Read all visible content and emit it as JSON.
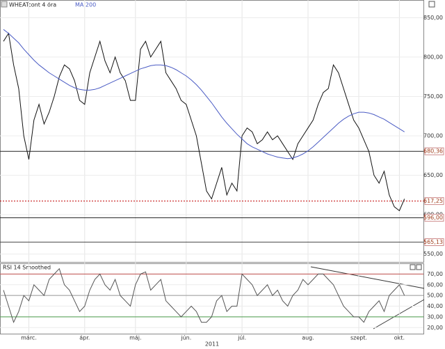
{
  "chart_data": [
    {
      "type": "line",
      "title": "WHEATcont 4 óra",
      "ylim": [
        540,
        860
      ],
      "yticks": [
        {
          "value": 850,
          "label": "850,00"
        },
        {
          "value": 800,
          "label": "800,00"
        },
        {
          "value": 750,
          "label": "750,00"
        },
        {
          "value": 700,
          "label": "700,00"
        },
        {
          "value": 650,
          "label": "650,00"
        },
        {
          "value": 600,
          "label": "600,00"
        },
        {
          "value": 550,
          "label": "550,00"
        }
      ],
      "grid": true,
      "series": [
        {
          "name": "WHEATcont 4 óra",
          "color": "#111111",
          "values": [
            820,
            830,
            790,
            760,
            700,
            670,
            720,
            740,
            715,
            730,
            750,
            775,
            790,
            785,
            770,
            745,
            740,
            780,
            800,
            820,
            795,
            780,
            800,
            780,
            770,
            745,
            745,
            810,
            820,
            800,
            810,
            820,
            780,
            770,
            760,
            745,
            740,
            720,
            700,
            665,
            630,
            620,
            640,
            660,
            625,
            640,
            630,
            700,
            710,
            705,
            690,
            695,
            705,
            695,
            700,
            690,
            680,
            670,
            690,
            700,
            710,
            720,
            740,
            755,
            760,
            790,
            780,
            760,
            740,
            720,
            710,
            695,
            680,
            650,
            640,
            655,
            625,
            610,
            605,
            620
          ]
        },
        {
          "name": "MA 200",
          "color": "#4a5bc4",
          "values": [
            835,
            830,
            824,
            818,
            810,
            803,
            796,
            790,
            785,
            780,
            776,
            772,
            768,
            764,
            761,
            759,
            758,
            758,
            759,
            761,
            764,
            767,
            770,
            773,
            776,
            779,
            782,
            785,
            787,
            789,
            790,
            790,
            789,
            787,
            784,
            780,
            776,
            771,
            765,
            758,
            750,
            742,
            733,
            724,
            716,
            709,
            702,
            696,
            690,
            686,
            683,
            680,
            677,
            675,
            673,
            672,
            671,
            672,
            674,
            677,
            681,
            686,
            692,
            698,
            704,
            710,
            716,
            721,
            725,
            728,
            730,
            730,
            729,
            727,
            724,
            721,
            717,
            713,
            709,
            705
          ]
        }
      ],
      "levels": [
        {
          "value": 680.36,
          "label": "680,36",
          "color": "#222222"
        },
        {
          "value": 617.25,
          "label": "617,25",
          "color": "#c00000",
          "style": "dotted"
        },
        {
          "value": 596,
          "label": "596,00",
          "color": "#222222"
        },
        {
          "value": 565.13,
          "label": "565,13",
          "color": "#444444"
        }
      ]
    },
    {
      "type": "line",
      "title": "RSI 14 Smoothed",
      "ylim": [
        15,
        80
      ],
      "yticks": [
        {
          "value": 70,
          "label": "70,00"
        },
        {
          "value": 60,
          "label": "60,00"
        },
        {
          "value": 50,
          "label": "50,00"
        },
        {
          "value": 40,
          "label": "40,00"
        },
        {
          "value": 30,
          "label": "30,00"
        },
        {
          "value": 20,
          "label": "20,00"
        }
      ],
      "grid": true,
      "categories": [
        null,
        null,
        null,
        null,
        null,
        "márc.",
        null,
        null,
        null,
        null,
        null,
        null,
        null,
        null,
        null,
        null,
        "ápr.",
        null,
        null,
        null,
        null,
        null,
        null,
        null,
        null,
        null,
        "máj.",
        null,
        null,
        null,
        null,
        null,
        null,
        null,
        null,
        null,
        "jún.",
        null,
        null,
        null,
        null,
        null,
        null,
        null,
        null,
        null,
        null,
        "júl.",
        null,
        null,
        null,
        null,
        null,
        null,
        null,
        null,
        null,
        null,
        null,
        null,
        "aug.",
        null,
        null,
        null,
        null,
        null,
        null,
        null,
        null,
        null,
        "szept.",
        null,
        null,
        null,
        null,
        null,
        null,
        null,
        "okt.",
        null
      ],
      "year": "2011",
      "series": [
        {
          "name": "RSI 14 Smoothed",
          "color": "#555555",
          "values": [
            55,
            40,
            25,
            35,
            50,
            45,
            60,
            55,
            50,
            65,
            70,
            75,
            60,
            55,
            45,
            35,
            40,
            55,
            65,
            70,
            60,
            55,
            65,
            50,
            45,
            40,
            60,
            70,
            72,
            55,
            60,
            65,
            45,
            40,
            35,
            30,
            35,
            40,
            35,
            25,
            25,
            30,
            45,
            50,
            35,
            40,
            40,
            70,
            65,
            60,
            50,
            55,
            60,
            50,
            55,
            45,
            40,
            50,
            55,
            65,
            60,
            65,
            70,
            70,
            65,
            60,
            50,
            40,
            35,
            30,
            30,
            25,
            35,
            40,
            45,
            35,
            50,
            55,
            60,
            50
          ]
        }
      ],
      "levels": [
        {
          "value": 70,
          "color": "#c0504d"
        },
        {
          "value": 50,
          "color": "#999999"
        },
        {
          "value": 30,
          "color": "#4a9a4a"
        }
      ]
    }
  ]
}
